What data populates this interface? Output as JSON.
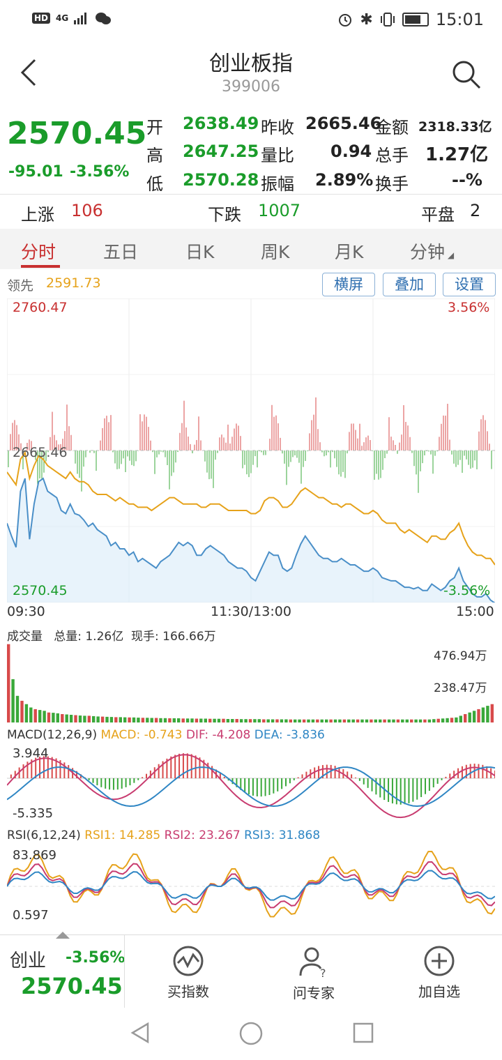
{
  "status_bar": {
    "time": "15:01",
    "hd": "HD",
    "signal": "4G"
  },
  "header": {
    "title": "创业板指",
    "code": "399006"
  },
  "quote": {
    "price": "2570.45",
    "change": "-95.01",
    "change_pct": "-3.56%",
    "fields": [
      {
        "label": "开",
        "value": "2638.49"
      },
      {
        "label": "高",
        "value": "2647.25"
      },
      {
        "label": "低",
        "value": "2570.28"
      },
      {
        "label": "昨收",
        "value": "2665.46"
      },
      {
        "label": "量比",
        "value": "0.94"
      },
      {
        "label": "振幅",
        "value": "2.89%"
      },
      {
        "label": "金额",
        "value": "2318.33亿"
      },
      {
        "label": "总手",
        "value": "1.27亿"
      },
      {
        "label": "换手",
        "value": "--%"
      }
    ]
  },
  "breadth": {
    "up_label": "上涨",
    "up_value": "106",
    "down_label": "下跌",
    "down_value": "1007",
    "flat_label": "平盘",
    "flat_value": "2"
  },
  "tabs": [
    "分时",
    "五日",
    "日K",
    "周K",
    "月K",
    "分钟"
  ],
  "chart_toolbar": {
    "lead_label": "领先",
    "lead_value": "2591.73",
    "buttons": [
      "横屏",
      "叠加",
      "设置"
    ]
  },
  "chart_data": [
    {
      "type": "line",
      "title": "",
      "y_labels": {
        "top_left": "2760.47",
        "top_right": "3.56%",
        "mid_left": "2665.46",
        "bottom_left": "2570.45",
        "bottom_right": "-3.56%"
      },
      "x_labels": [
        "09:30",
        "11:30/13:00",
        "15:00"
      ],
      "ylim": [
        2570.45,
        2760.47
      ],
      "series": [
        {
          "name": "",
          "color": "#2f86c4",
          "values": [
            2620,
            2612,
            2605,
            2640,
            2648,
            2610,
            2632,
            2646,
            2648,
            2640,
            2638,
            2636,
            2628,
            2626,
            2632,
            2626,
            2625,
            2622,
            2618,
            2620,
            2616,
            2614,
            2612,
            2606,
            2608,
            2604,
            2604,
            2600,
            2602,
            2596,
            2598,
            2596,
            2594,
            2592,
            2596,
            2598,
            2600,
            2604,
            2608,
            2606,
            2608,
            2606,
            2600,
            2600,
            2604,
            2606,
            2604,
            2602,
            2600,
            2596,
            2594,
            2592,
            2592,
            2590,
            2586,
            2584,
            2590,
            2596,
            2602,
            2600,
            2600,
            2592,
            2590,
            2592,
            2600,
            2607,
            2612,
            2608,
            2604,
            2600,
            2598,
            2598,
            2596,
            2596,
            2598,
            2596,
            2594,
            2594,
            2592,
            2590,
            2590,
            2592,
            2590,
            2586,
            2585,
            2584,
            2584,
            2582,
            2580,
            2580,
            2579,
            2580,
            2578,
            2578,
            2582,
            2580,
            2578,
            2580,
            2584,
            2586,
            2592,
            2584,
            2580,
            2576,
            2574,
            2574,
            2576,
            2572,
            2570
          ]
        },
        {
          "name": "",
          "color": "#e6a21a",
          "values": [
            2652,
            2648,
            2644,
            2660,
            2664,
            2648,
            2656,
            2662,
            2660,
            2656,
            2654,
            2652,
            2650,
            2648,
            2652,
            2648,
            2646,
            2646,
            2644,
            2640,
            2638,
            2638,
            2638,
            2636,
            2634,
            2636,
            2634,
            2632,
            2632,
            2630,
            2630,
            2630,
            2628,
            2630,
            2632,
            2634,
            2636,
            2636,
            2634,
            2632,
            2632,
            2632,
            2632,
            2630,
            2630,
            2632,
            2632,
            2632,
            2630,
            2628,
            2628,
            2628,
            2628,
            2628,
            2626,
            2626,
            2628,
            2634,
            2636,
            2636,
            2634,
            2630,
            2630,
            2632,
            2636,
            2640,
            2642,
            2640,
            2638,
            2636,
            2636,
            2634,
            2632,
            2632,
            2630,
            2632,
            2632,
            2630,
            2628,
            2626,
            2626,
            2628,
            2626,
            2622,
            2620,
            2620,
            2620,
            2616,
            2614,
            2616,
            2614,
            2612,
            2610,
            2608,
            2612,
            2612,
            2610,
            2610,
            2614,
            2616,
            2620,
            2612,
            2606,
            2602,
            2600,
            2600,
            2598,
            2598,
            2594
          ]
        }
      ]
    },
    {
      "type": "bar",
      "title": "成交量",
      "total_label": "总量: 1.26亿",
      "current_label": "现手: 166.66万",
      "y_labels": [
        "476.94万",
        "238.47万"
      ],
      "ylim": [
        0,
        476.94
      ],
      "values": [
        470,
        260,
        160,
        130,
        110,
        90,
        80,
        75,
        70,
        60,
        58,
        55,
        50,
        48,
        46,
        44,
        42,
        40,
        40,
        38,
        36,
        35,
        34,
        33,
        32,
        32,
        31,
        30,
        30,
        29,
        28,
        28,
        27,
        27,
        26,
        26,
        25,
        25,
        25,
        24,
        24,
        24,
        23,
        23,
        23,
        22,
        22,
        22,
        22,
        21,
        21,
        21,
        20,
        20,
        20,
        20,
        20,
        19,
        19,
        19,
        19,
        19,
        19,
        18,
        18,
        18,
        18,
        18,
        18,
        18,
        18,
        18,
        18,
        18,
        18,
        18,
        18,
        18,
        18,
        18,
        18,
        18,
        18,
        18,
        18,
        18,
        18,
        18,
        18,
        18,
        18,
        18,
        18,
        18,
        18,
        20,
        22,
        24,
        26,
        28,
        30,
        40,
        50,
        60,
        70,
        80,
        90,
        100,
        110
      ]
    },
    {
      "type": "line",
      "title": "MACD(12,26,9)",
      "legend": [
        {
          "name": "MACD: -0.743",
          "color": "#e6a21a"
        },
        {
          "name": "DIF: -4.208",
          "color": "#c83c70"
        },
        {
          "name": "DEA: -3.836",
          "color": "#2f86c4"
        }
      ],
      "y_labels": [
        "3.944",
        "-5.335"
      ],
      "ylim": [
        -5.335,
        3.944
      ]
    },
    {
      "type": "line",
      "title": "RSI(6,12,24)",
      "legend": [
        {
          "name": "RSI1: 14.285",
          "color": "#e6a21a"
        },
        {
          "name": "RSI2: 23.267",
          "color": "#c83c70"
        },
        {
          "name": "RSI3: 31.868",
          "color": "#2f86c4"
        }
      ],
      "y_labels": [
        "83.869",
        "0.597"
      ],
      "ylim": [
        0.597,
        83.869
      ]
    }
  ],
  "bottom_bar": {
    "name": "创业",
    "pct": "-3.56%",
    "price": "2570.45",
    "items": [
      {
        "label": "买指数",
        "icon": "chart-wave-icon"
      },
      {
        "label": "问专家",
        "icon": "expert-icon"
      },
      {
        "label": "加自选",
        "icon": "plus-circle-icon"
      }
    ]
  }
}
